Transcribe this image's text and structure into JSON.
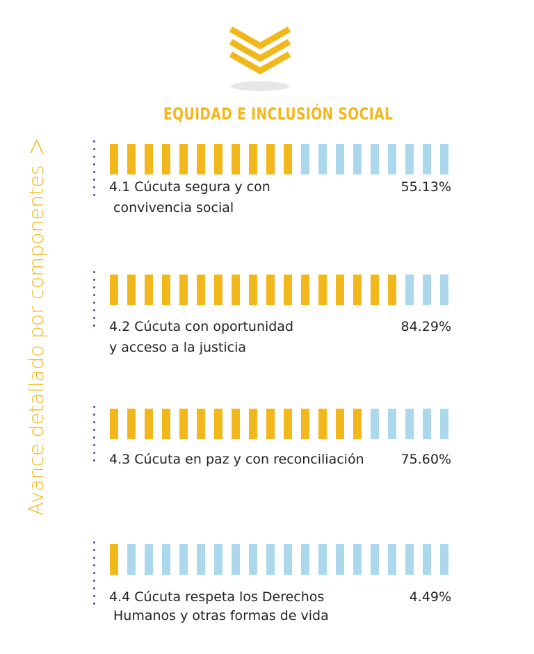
{
  "side_label": "Avance detallado por  componentes",
  "title": "EQUIDAD E INCLUSIÓN SOCIAL",
  "colors": {
    "accent": "#f2b81b",
    "remaining": "#acd8ee",
    "dots": "#5b3f8c"
  },
  "components": [
    {
      "label_line1": "4.1 Cúcuta segura y con",
      "label_line2": "convivencia social",
      "percent": "55.13%",
      "value": 55.13
    },
    {
      "label_line1": "4.2 Cúcuta con oportunidad",
      "label_line2": "y acceso a la justicia",
      "percent": "84.29%",
      "value": 84.29
    },
    {
      "label_line1": "4.3 Cúcuta en paz y con reconciliación",
      "label_line2": "",
      "percent": "75.60%",
      "value": 75.6
    },
    {
      "label_line1": "4.4 Cúcuta respeta los Derechos",
      "label_line2": "Humanos y otras formas de vida",
      "percent": "4.49%",
      "value": 4.49
    }
  ],
  "chart_data": {
    "type": "bar",
    "title": "EQUIDAD E INCLUSIÓN SOCIAL",
    "categories": [
      "4.1 Cúcuta segura y con convivencia social",
      "4.2 Cúcuta con oportunidad y acceso a la justicia",
      "4.3 Cúcuta en paz y con reconciliación",
      "4.4 Cúcuta respeta los Derechos Humanos y otras formas de vida"
    ],
    "values": [
      55.13,
      84.29,
      75.6,
      4.49
    ],
    "ylim": [
      0,
      100
    ],
    "unit": "%"
  }
}
